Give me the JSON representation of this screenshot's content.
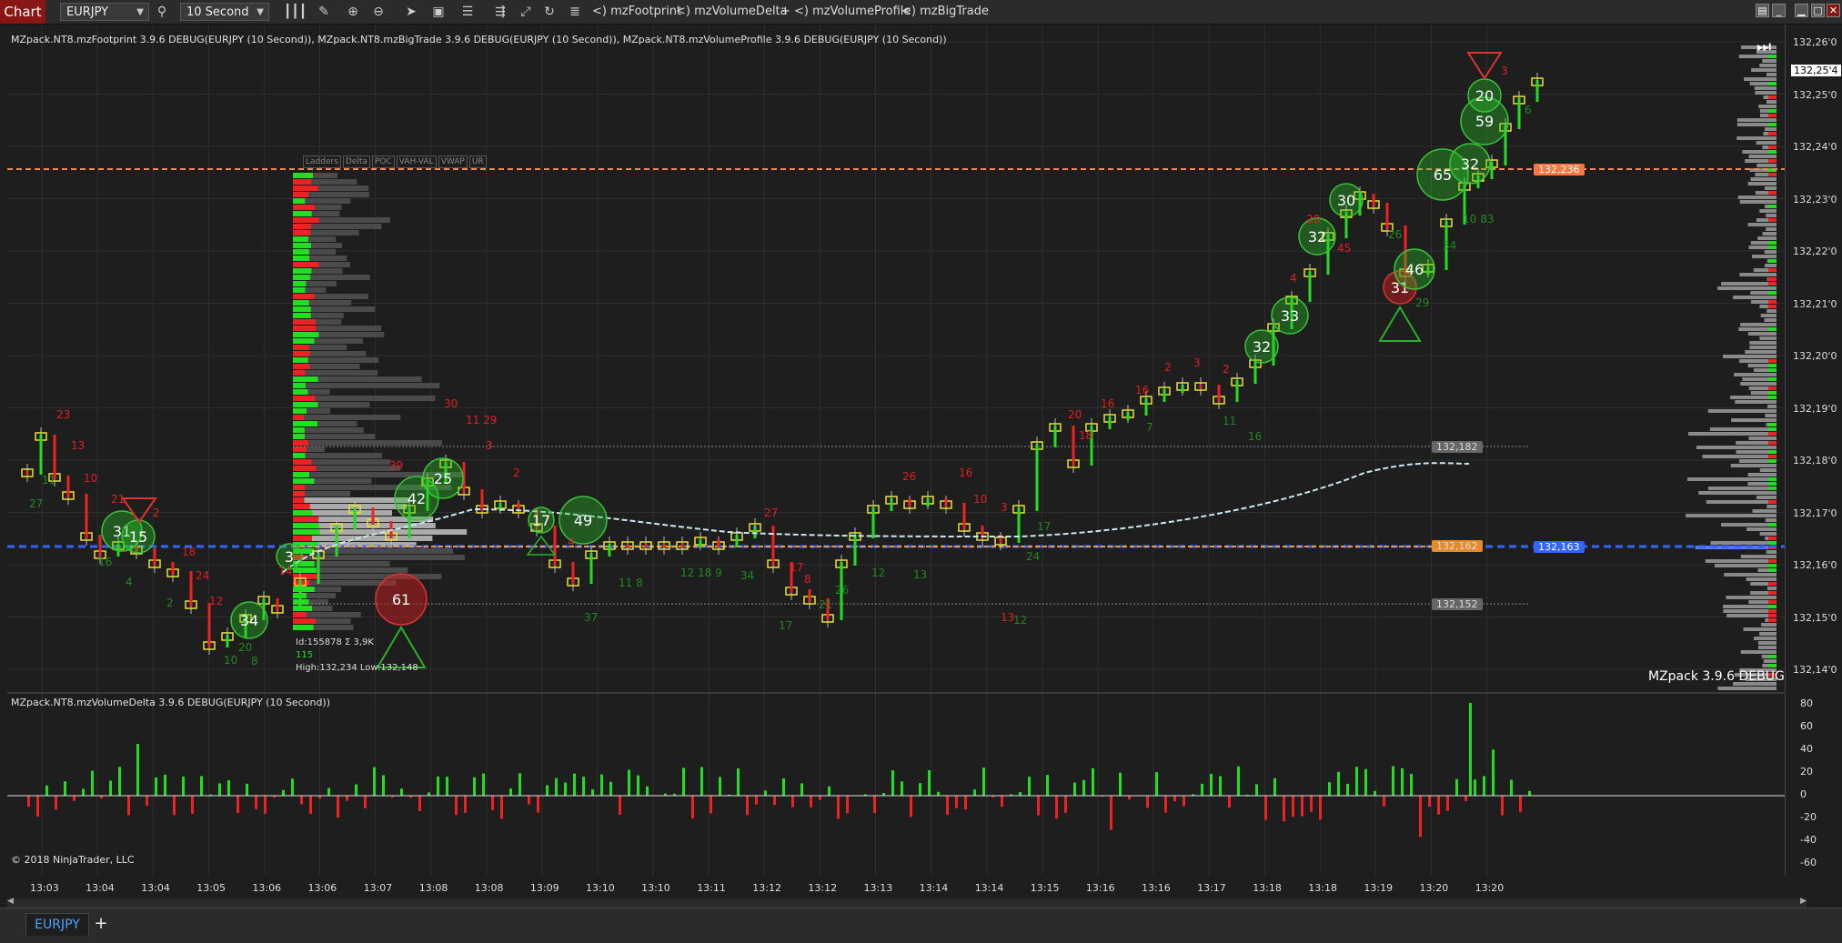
{
  "toolbar": {
    "chart_tab": "Chart",
    "instrument": "EURJPY",
    "interval": "10 Second",
    "indicators": [
      "<) mzFootprint",
      "<) mzVolumeDelta",
      "+ <) mzVolumeProfile",
      "<) mzBigTrade"
    ],
    "icons": [
      "bar-style-icon",
      "zoom-in-icon",
      "zoom-out-icon",
      "pointer-icon",
      "data-box-icon",
      "chart-style-icon",
      "strategy-icon",
      "drawing-tools-icon",
      "reload-icon",
      "properties-icon"
    ]
  },
  "price_panel": {
    "caption": "MZpack.NT8.mzFootprint 3.9.6 DEBUG(EURJPY (10 Second)), MZpack.NT8.mzBigTrade 3.9.6 DEBUG(EURJPY (10 Second)), MZpack.NT8.mzVolumeProfile 3.9.6 DEBUG(EURJPY (10 Second))",
    "watermark": "MZpack 3.9.6 DEBUG",
    "profile_buttons": [
      "Ladders",
      "Delta",
      "POC",
      "VAH-VAL",
      "VWAP",
      "UR"
    ],
    "profile_info": {
      "line1": "Id:155878 Σ 3,9K",
      "line2": "115",
      "line3": "High:132,234 Low:132,148"
    },
    "level_tags": [
      "132,182",
      "132,152",
      "132,162"
    ],
    "right_tags": [
      "132,236",
      "132,163"
    ],
    "current_price": "132,25'4",
    "colors": {
      "up": "#22dd22",
      "down": "#ee2222",
      "orange_line": "#ff8855",
      "blue_line": "#3366ff",
      "vwap": "#c8e8f0"
    }
  },
  "price_axis": {
    "labels": [
      "132,26'0",
      "132,25'0",
      "132,24'0",
      "132,23'0",
      "132,22'0",
      "132,21'0",
      "132,20'0",
      "132,19'0",
      "132,18'0",
      "132,17'0",
      "132,16'0",
      "132,15'0",
      "132,14'0"
    ]
  },
  "delta_panel": {
    "caption": "MZpack.NT8.mzVolumeDelta 3.9.6 DEBUG(EURJPY (10 Second))",
    "copyright": "© 2018 NinjaTrader, LLC",
    "axis_labels": [
      "80",
      "60",
      "40",
      "20",
      "0",
      "-20",
      "-40",
      "-60"
    ]
  },
  "time_axis": {
    "labels": [
      "13:03",
      "13:04",
      "13:04",
      "13:05",
      "13:06",
      "13:06",
      "13:07",
      "13:08",
      "13:08",
      "13:09",
      "13:10",
      "13:10",
      "13:11",
      "13:12",
      "13:12",
      "13:13",
      "13:14",
      "13:14",
      "13:15",
      "13:16",
      "13:16",
      "13:17",
      "13:18",
      "13:18",
      "13:19",
      "13:20",
      "13:20"
    ]
  },
  "big_trades": [
    {
      "v": "31",
      "c": "g"
    },
    {
      "v": "15",
      "c": "g"
    },
    {
      "v": "34",
      "c": "g"
    },
    {
      "v": "3",
      "c": "g"
    },
    {
      "v": "42",
      "c": "g"
    },
    {
      "v": "25",
      "c": "g"
    },
    {
      "v": "61",
      "c": "r"
    },
    {
      "v": "17",
      "c": "g"
    },
    {
      "v": "49",
      "c": "g"
    },
    {
      "v": "32",
      "c": "g"
    },
    {
      "v": "33",
      "c": "g"
    },
    {
      "v": "32",
      "c": "g"
    },
    {
      "v": "30",
      "c": "g"
    },
    {
      "v": "31",
      "c": "r"
    },
    {
      "v": "46",
      "c": "g"
    },
    {
      "v": "65",
      "c": "g"
    },
    {
      "v": "32",
      "c": "g"
    },
    {
      "v": "59",
      "c": "g"
    },
    {
      "v": "20",
      "c": "g"
    }
  ],
  "footprint_numbers": [
    {
      "v": "23",
      "c": "r"
    },
    {
      "v": "13",
      "c": "r"
    },
    {
      "v": "10",
      "c": "r"
    },
    {
      "v": "27",
      "c": "g"
    },
    {
      "v": "11",
      "c": "g"
    },
    {
      "v": "21",
      "c": "r"
    },
    {
      "v": "2",
      "c": "r"
    },
    {
      "v": "16",
      "c": "g"
    },
    {
      "v": "4",
      "c": "g"
    },
    {
      "v": "18",
      "c": "r"
    },
    {
      "v": "24",
      "c": "r"
    },
    {
      "v": "2",
      "c": "g"
    },
    {
      "v": "12",
      "c": "r"
    },
    {
      "v": "20",
      "c": "g"
    },
    {
      "v": "10",
      "c": "g"
    },
    {
      "v": "8",
      "c": "g"
    },
    {
      "v": "14",
      "c": "r"
    },
    {
      "v": "30",
      "c": "r"
    },
    {
      "v": "11 29",
      "c": "r"
    },
    {
      "v": "39",
      "c": "r"
    },
    {
      "v": "3",
      "c": "r"
    },
    {
      "v": "2",
      "c": "r"
    },
    {
      "v": "4",
      "c": "r"
    },
    {
      "v": "37",
      "c": "g"
    },
    {
      "v": "11 8",
      "c": "g"
    },
    {
      "v": "12 18 9",
      "c": "g"
    },
    {
      "v": "34",
      "c": "g"
    },
    {
      "v": "27",
      "c": "r"
    },
    {
      "v": "17",
      "c": "r"
    },
    {
      "v": "8",
      "c": "r"
    },
    {
      "v": "21",
      "c": "g"
    },
    {
      "v": "26",
      "c": "g"
    },
    {
      "v": "17",
      "c": "g"
    },
    {
      "v": "12",
      "c": "g"
    },
    {
      "v": "13",
      "c": "g"
    },
    {
      "v": "26",
      "c": "r"
    },
    {
      "v": "16",
      "c": "r"
    },
    {
      "v": "10",
      "c": "r"
    },
    {
      "v": "3",
      "c": "r"
    },
    {
      "v": "13",
      "c": "r"
    },
    {
      "v": "24",
      "c": "g"
    },
    {
      "v": "12",
      "c": "g"
    },
    {
      "v": "17",
      "c": "g"
    },
    {
      "v": "20",
      "c": "r"
    },
    {
      "v": "18",
      "c": "r"
    },
    {
      "v": "16",
      "c": "r"
    },
    {
      "v": "16",
      "c": "r"
    },
    {
      "v": "2",
      "c": "r"
    },
    {
      "v": "3",
      "c": "r"
    },
    {
      "v": "2",
      "c": "r"
    },
    {
      "v": "7",
      "c": "g"
    },
    {
      "v": "11",
      "c": "g"
    },
    {
      "v": "16",
      "c": "g"
    },
    {
      "v": "4",
      "c": "r"
    },
    {
      "v": "20",
      "c": "r"
    },
    {
      "v": "45",
      "c": "r"
    },
    {
      "v": "26",
      "c": "g"
    },
    {
      "v": "29",
      "c": "g"
    },
    {
      "v": "34",
      "c": "g"
    },
    {
      "v": "10 83",
      "c": "g"
    },
    {
      "v": "3",
      "c": "r"
    },
    {
      "v": "6",
      "c": "g"
    }
  ],
  "bottom_tabs": {
    "symbol": "EURJPY",
    "add": "+"
  }
}
